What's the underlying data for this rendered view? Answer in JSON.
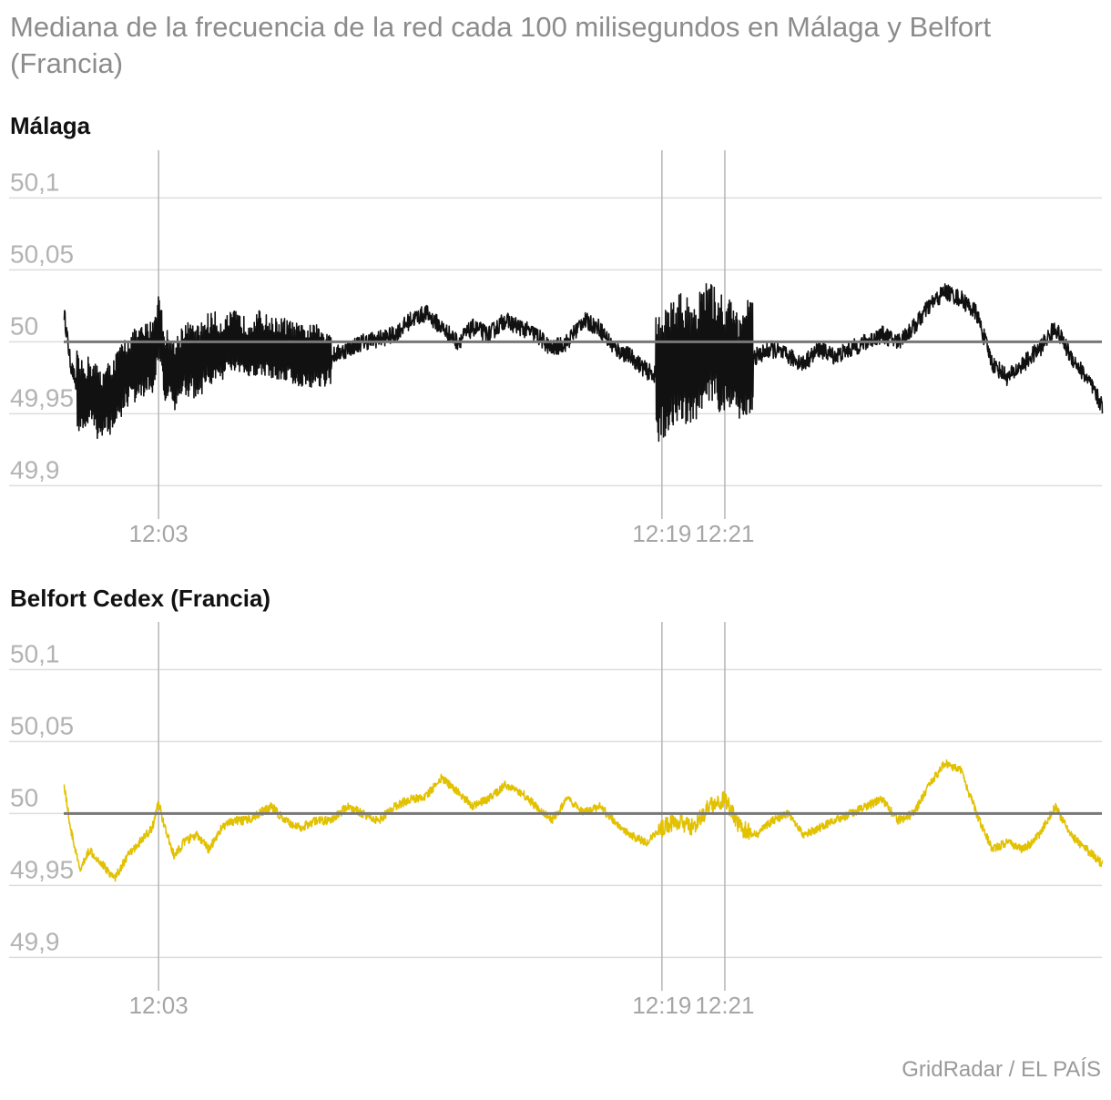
{
  "title": "Mediana de la frecuencia de la red cada 100 milisegundos en Málaga y Belfort (Francia)",
  "source": "GridRadar / EL PAÍS",
  "colors": {
    "malaga": "#111111",
    "belfort": "#e2c100",
    "reference": "#777777",
    "grid": "#dddddd",
    "vline": "#b5b5b5"
  },
  "chart_data": [
    {
      "type": "line",
      "title": "Málaga",
      "ylim": [
        49.88,
        50.13
      ],
      "yticks": [
        50.1,
        50.05,
        50,
        49.95,
        49.9
      ],
      "ytick_labels": [
        "50,1",
        "50,05",
        "50",
        "49,95",
        "49,9"
      ],
      "xlim_min": [
        0.0,
        33.0
      ],
      "xticks_min": [
        3.0,
        19.0,
        21.0
      ],
      "xtick_labels": [
        "12:03",
        "12:19",
        "12:21"
      ],
      "reference_line": 50,
      "series": [
        {
          "color": "#111111",
          "x": [
            0.0,
            0.2,
            0.5,
            0.8,
            1.2,
            1.6,
            2.0,
            2.4,
            2.8,
            3.0,
            3.2,
            3.5,
            3.8,
            4.2,
            4.6,
            5.0,
            5.4,
            5.8,
            6.2,
            6.6,
            7.0,
            7.5,
            8.0,
            8.5,
            9.0,
            9.5,
            10.0,
            10.5,
            11.0,
            11.5,
            12.0,
            12.5,
            13.0,
            13.5,
            14.0,
            14.5,
            15.0,
            15.5,
            16.0,
            16.5,
            17.0,
            17.5,
            18.0,
            18.5,
            19.0,
            19.5,
            20.0,
            20.5,
            21.0,
            21.5,
            22.0,
            22.5,
            23.0,
            23.5,
            24.0,
            24.5,
            25.0,
            25.5,
            26.0,
            26.5,
            27.0,
            27.5,
            28.0,
            28.5,
            29.0,
            29.5,
            30.0,
            30.5,
            31.0,
            31.5,
            32.0,
            32.5,
            33.0
          ],
          "y": [
            50.02,
            49.985,
            49.96,
            49.965,
            49.955,
            49.965,
            49.98,
            49.985,
            49.99,
            50.01,
            49.985,
            49.975,
            49.99,
            49.985,
            49.995,
            49.995,
            50.0,
            49.995,
            50.0,
            49.995,
            49.995,
            49.99,
            49.99,
            49.99,
            49.995,
            50.0,
            50.002,
            50.005,
            50.015,
            50.02,
            50.01,
            50.0,
            50.01,
            50.005,
            50.015,
            50.01,
            50.005,
            49.995,
            50.0,
            50.015,
            50.01,
            49.995,
            49.99,
            49.98,
            49.975,
            49.99,
            49.985,
            50.0,
            49.99,
            49.985,
            49.99,
            49.995,
            49.99,
            49.985,
            49.995,
            49.99,
            49.995,
            50.0,
            50.005,
            50.0,
            50.01,
            50.025,
            50.035,
            50.03,
            50.02,
            49.985,
            49.975,
            49.985,
            49.995,
            50.01,
            49.99,
            49.975,
            49.955
          ]
        }
      ]
    },
    {
      "type": "line",
      "title": "Belfort Cedex (Francia)",
      "ylim": [
        49.88,
        50.13
      ],
      "yticks": [
        50.1,
        50.05,
        50,
        49.95,
        49.9
      ],
      "ytick_labels": [
        "50,1",
        "50,05",
        "50",
        "49,95",
        "49,9"
      ],
      "xlim_min": [
        0.0,
        33.0
      ],
      "xticks_min": [
        3.0,
        19.0,
        21.0
      ],
      "xtick_labels": [
        "12:03",
        "12:19",
        "12:21"
      ],
      "reference_line": 50,
      "series": [
        {
          "color": "#e2c100",
          "x": [
            0.0,
            0.2,
            0.5,
            0.8,
            1.2,
            1.6,
            2.0,
            2.4,
            2.8,
            3.0,
            3.2,
            3.5,
            3.8,
            4.2,
            4.6,
            5.0,
            5.4,
            5.8,
            6.2,
            6.6,
            7.0,
            7.5,
            8.0,
            8.5,
            9.0,
            9.5,
            10.0,
            10.5,
            11.0,
            11.5,
            12.0,
            12.5,
            13.0,
            13.5,
            14.0,
            14.5,
            15.0,
            15.5,
            16.0,
            16.5,
            17.0,
            17.5,
            18.0,
            18.5,
            19.0,
            19.5,
            20.0,
            20.5,
            21.0,
            21.5,
            22.0,
            22.5,
            23.0,
            23.5,
            24.0,
            24.5,
            25.0,
            25.5,
            26.0,
            26.5,
            27.0,
            27.5,
            28.0,
            28.5,
            29.0,
            29.5,
            30.0,
            30.5,
            31.0,
            31.5,
            32.0,
            32.5,
            33.0
          ],
          "y": [
            50.02,
            49.99,
            49.96,
            49.975,
            49.965,
            49.955,
            49.97,
            49.98,
            49.99,
            50.008,
            49.99,
            49.97,
            49.98,
            49.985,
            49.975,
            49.99,
            49.995,
            49.995,
            50.0,
            50.005,
            49.995,
            49.99,
            49.995,
            49.995,
            50.005,
            50.0,
            49.995,
            50.005,
            50.01,
            50.012,
            50.025,
            50.015,
            50.005,
            50.01,
            50.02,
            50.015,
            50.005,
            49.995,
            50.01,
            50.0,
            50.005,
            49.995,
            49.985,
            49.98,
            49.99,
            49.995,
            49.99,
            50.005,
            50.01,
            49.99,
            49.985,
            49.995,
            50.0,
            49.985,
            49.99,
            49.995,
            50.0,
            50.005,
            50.01,
            49.995,
            50.0,
            50.02,
            50.035,
            50.03,
            50.0,
            49.975,
            49.98,
            49.975,
            49.985,
            50.005,
            49.985,
            49.975,
            49.965
          ]
        }
      ]
    }
  ]
}
